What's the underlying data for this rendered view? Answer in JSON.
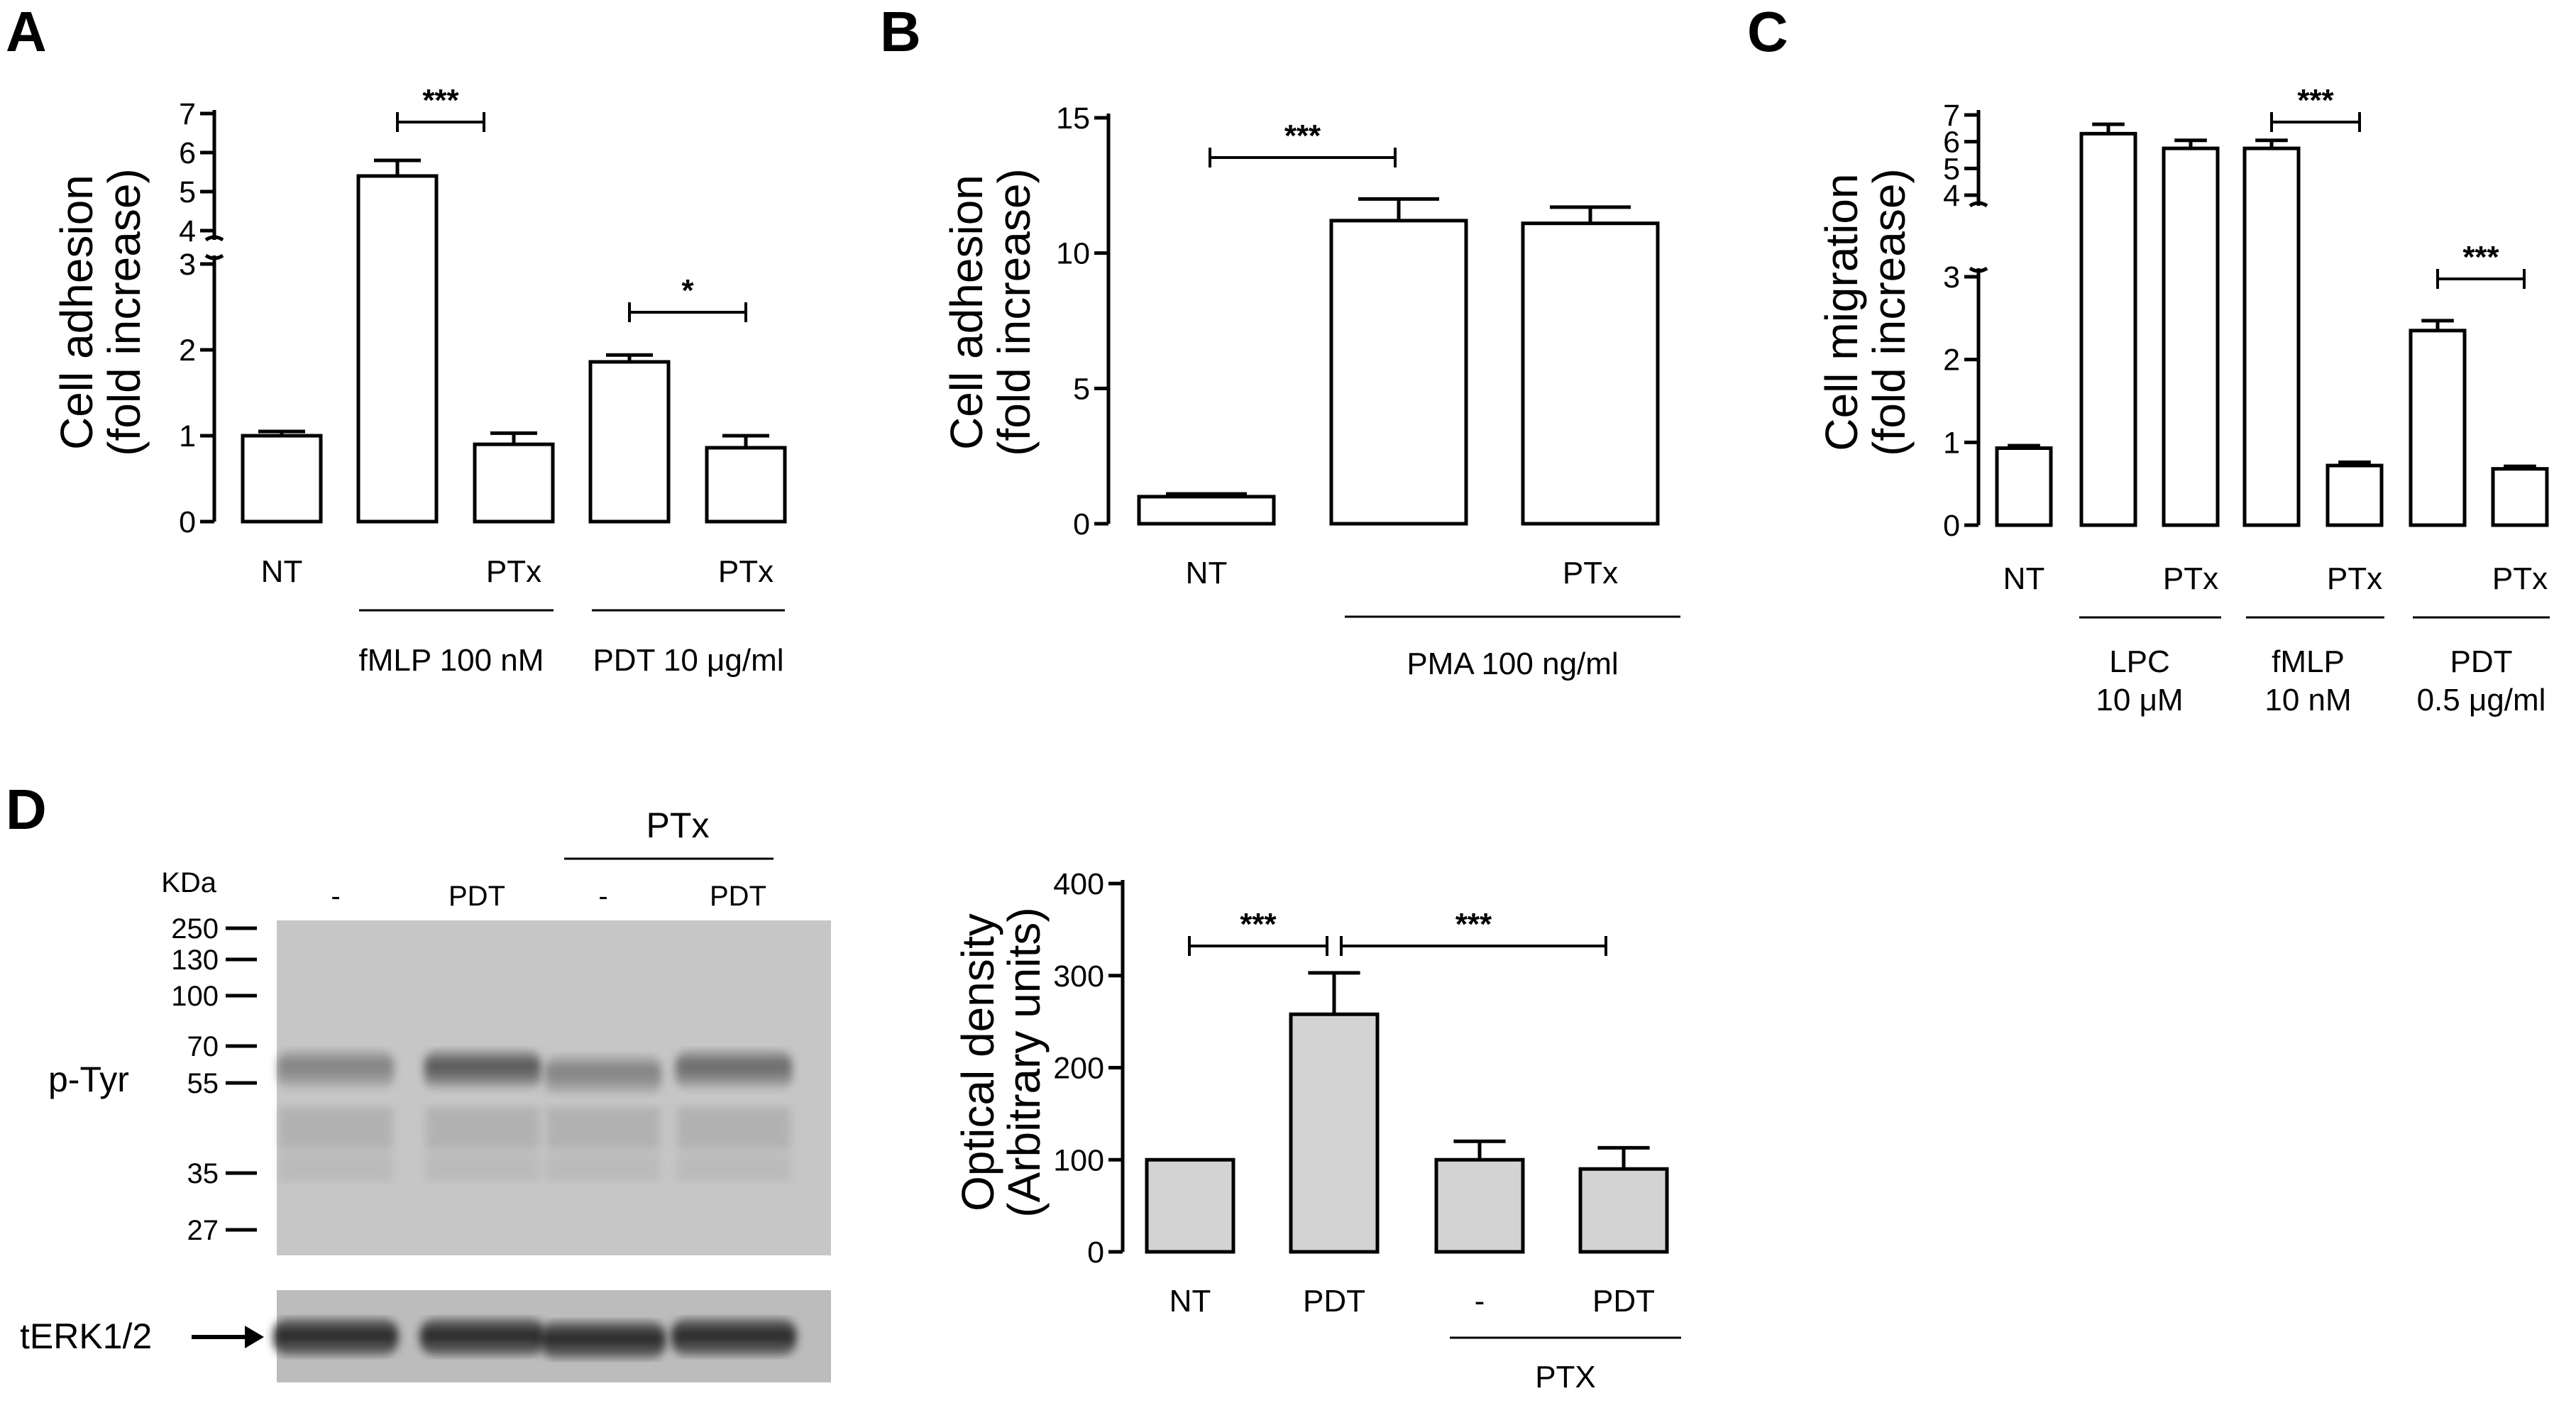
{
  "chart_data": [
    {
      "panel": "A",
      "type": "bar",
      "ylabel": [
        "Cell adhesion",
        "(fold increase)"
      ],
      "yticks_lower": [
        "0",
        "1",
        "2",
        "3"
      ],
      "yticks_upper": [
        "4",
        "5",
        "6",
        "7"
      ],
      "broken_axis": {
        "lower_range": [
          0,
          3
        ],
        "upper_range": [
          4,
          7
        ]
      },
      "bars": [
        {
          "label": "NT",
          "value": 1.0,
          "error": 0.05
        },
        {
          "label": "",
          "value": 5.4,
          "error": 0.4
        },
        {
          "label": "PTx",
          "value": 0.9,
          "error": 0.13
        },
        {
          "label": "",
          "value": 1.86,
          "error": 0.08
        },
        {
          "label": "PTx",
          "value": 0.86,
          "error": 0.14
        }
      ],
      "groups": [
        {
          "label": "fMLP 100 nM",
          "bars": [
            1,
            2
          ]
        },
        {
          "label": "PDT 10 μg/ml",
          "bars": [
            3,
            4
          ]
        }
      ],
      "significance": [
        {
          "from": 1,
          "to": 2,
          "label": "***"
        },
        {
          "from": 3,
          "to": 4,
          "label": "*"
        }
      ]
    },
    {
      "panel": "B",
      "type": "bar",
      "ylabel": [
        "Cell adhesion",
        "(fold increase)"
      ],
      "ylim": [
        0,
        15
      ],
      "yticks": [
        "0",
        "5",
        "10",
        "15"
      ],
      "bars": [
        {
          "label": "NT",
          "value": 1.0,
          "error": 0.1
        },
        {
          "label": "",
          "value": 11.2,
          "error": 0.8
        },
        {
          "label": "PTx",
          "value": 11.1,
          "error": 0.6
        }
      ],
      "groups": [
        {
          "label": "PMA 100 ng/ml",
          "bars": [
            1,
            2
          ]
        }
      ],
      "significance": [
        {
          "from": 0,
          "to": 1,
          "label": "***"
        }
      ]
    },
    {
      "panel": "C",
      "type": "bar",
      "ylabel": [
        "Cell migration",
        "(fold increase)"
      ],
      "yticks_lower": [
        "0",
        "1",
        "2",
        "3"
      ],
      "yticks_upper": [
        "4",
        "5",
        "6",
        "7"
      ],
      "broken_axis": {
        "lower_range": [
          0,
          3
        ],
        "upper_range": [
          4,
          7
        ]
      },
      "bars": [
        {
          "label": "NT",
          "value": 0.93,
          "error": 0.03
        },
        {
          "label": "",
          "value": 6.3,
          "error": 0.35
        },
        {
          "label": "PTx",
          "value": 5.75,
          "error": 0.3
        },
        {
          "label": "",
          "value": 5.75,
          "error": 0.3
        },
        {
          "label": "PTx",
          "value": 0.72,
          "error": 0.04
        },
        {
          "label": "",
          "value": 2.35,
          "error": 0.12
        },
        {
          "label": "PTx",
          "value": 0.68,
          "error": 0.03
        }
      ],
      "groups": [
        {
          "label": [
            "LPC",
            "10 μM"
          ],
          "bars": [
            1,
            2
          ]
        },
        {
          "label": [
            "fMLP",
            "10 nM"
          ],
          "bars": [
            3,
            4
          ]
        },
        {
          "label": [
            "PDT",
            "0.5 μg/ml"
          ],
          "bars": [
            5,
            6
          ]
        }
      ],
      "significance": [
        {
          "from": 3,
          "to": 4,
          "label": "***"
        },
        {
          "from": 5,
          "to": 6,
          "label": "***"
        }
      ]
    },
    {
      "panel": "D",
      "type": "bar",
      "ylabel": [
        "Optical density",
        "(Arbitrary units)"
      ],
      "ylim": [
        0,
        400
      ],
      "yticks": [
        "0",
        "100",
        "200",
        "300",
        "400"
      ],
      "bars": [
        {
          "label": "NT",
          "value": 100,
          "error": 0
        },
        {
          "label": "PDT",
          "value": 258,
          "error": 45
        },
        {
          "label": "-",
          "value": 100,
          "error": 20
        },
        {
          "label": "PDT",
          "value": 90,
          "error": 23
        }
      ],
      "groups": [
        {
          "label": "PTX",
          "bars": [
            2,
            3
          ]
        }
      ],
      "significance": [
        {
          "from": 0,
          "to": 1,
          "label": "***"
        },
        {
          "from": 1,
          "to": 3,
          "label": "***"
        }
      ],
      "bar_color": "#d3d3d3"
    }
  ],
  "panel_labels": [
    "A",
    "B",
    "C",
    "D"
  ],
  "western_blot": {
    "kda_label": "KDa",
    "lane_labels": [
      "-",
      "PDT",
      "-",
      "PDT"
    ],
    "group_label": "PTx",
    "markers": [
      "250",
      "130",
      "100",
      "70",
      "55",
      "35",
      "27"
    ],
    "row_labels": [
      "p-Tyr",
      "tERK1/2"
    ]
  }
}
